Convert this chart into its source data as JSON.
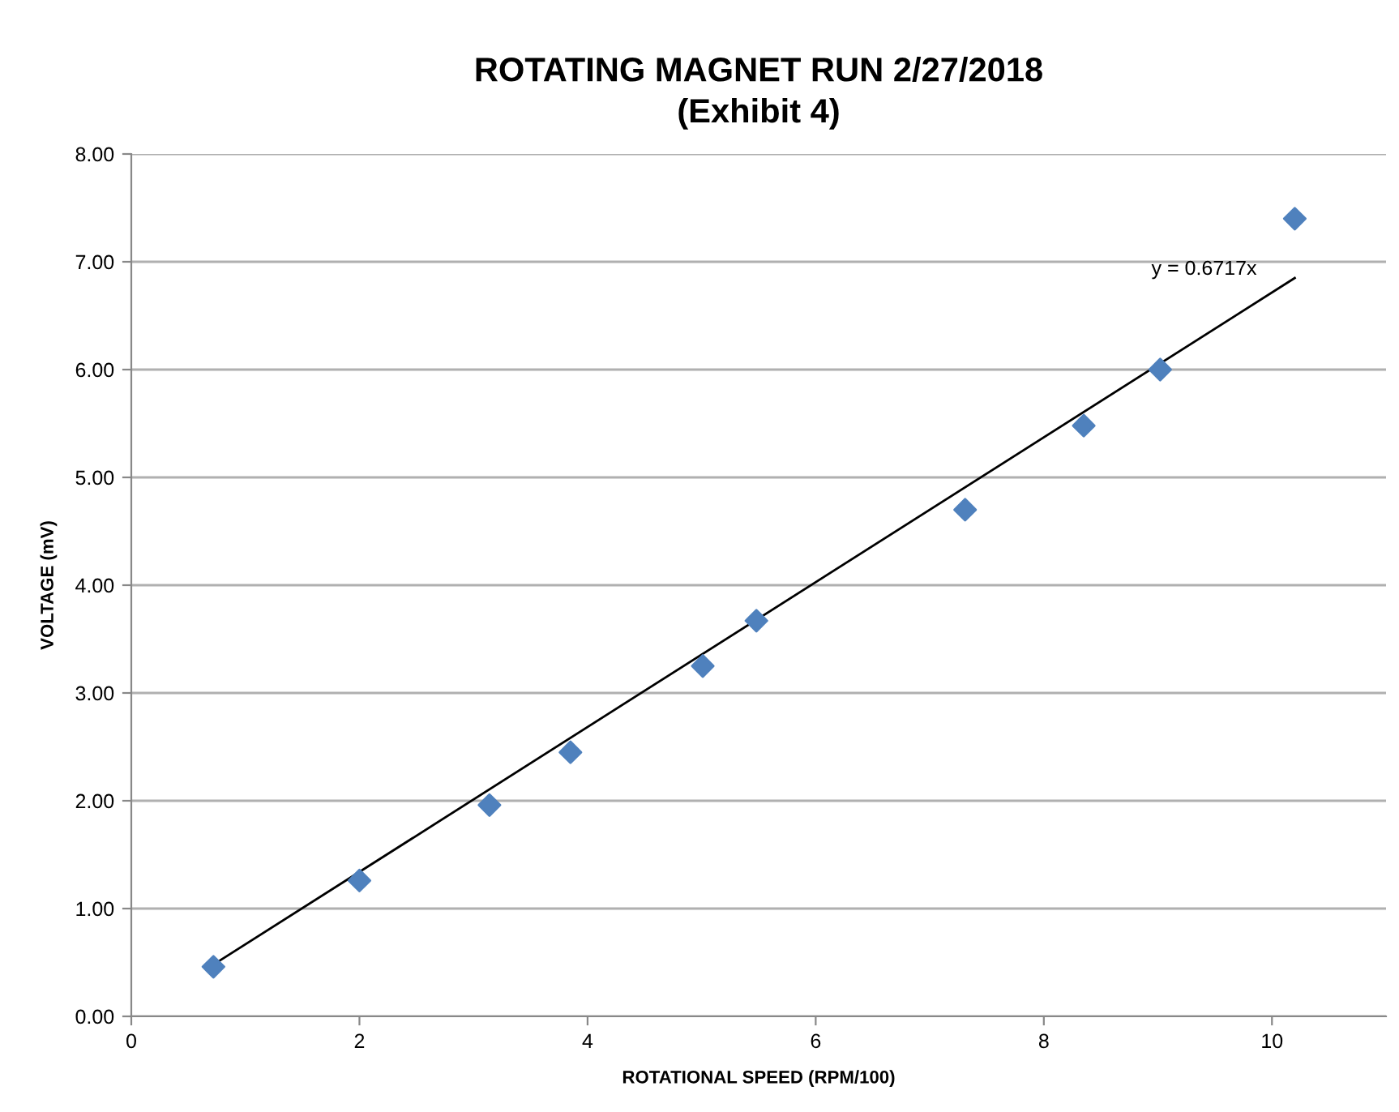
{
  "chart_data": {
    "type": "scatter",
    "title": "ROTATING MAGNET RUN 2/27/2018\n(Exhibit 4)",
    "xlabel": "ROTATIONAL SPEED (RPM/100)",
    "ylabel": "VOLTAGE (mV)",
    "series": [
      {
        "color": "#4f81bd",
        "marker": "diamond",
        "x": [
          0.72,
          2.0,
          3.14,
          3.85,
          5.01,
          5.48,
          7.31,
          8.35,
          9.02,
          10.2
        ],
        "values": [
          0.46,
          1.26,
          1.96,
          2.45,
          3.25,
          3.67,
          4.7,
          5.48,
          6.0,
          7.4
        ]
      },
      {
        "type": "line",
        "color": "#000000",
        "marker": "none",
        "line_style": "solid",
        "x": [
          0.72,
          10.2
        ],
        "values": [
          0.48,
          6.85
        ]
      }
    ],
    "annotations": [
      "y = 0.6717x"
    ],
    "xlim": [
      0,
      11
    ],
    "xticks": [
      0,
      2,
      4,
      6,
      8,
      10
    ],
    "ylim": [
      0,
      8
    ],
    "yticks": [
      {
        "value": 0,
        "label": "0.00"
      },
      {
        "value": 1,
        "label": "1.00"
      },
      {
        "value": 2,
        "label": "2.00"
      },
      {
        "value": 3,
        "label": "3.00"
      },
      {
        "value": 4,
        "label": "4.00"
      },
      {
        "value": 5,
        "label": "5.00"
      },
      {
        "value": 6,
        "label": "6.00"
      },
      {
        "value": 7,
        "label": "7.00"
      },
      {
        "value": 8,
        "label": "8.00"
      }
    ],
    "grid": "y",
    "legend": false
  }
}
